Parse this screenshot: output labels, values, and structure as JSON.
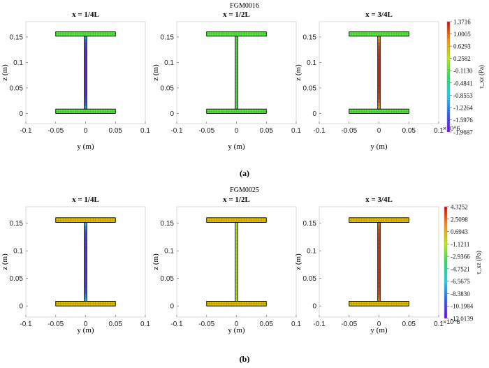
{
  "chart_data": [
    {
      "type": "heatmap",
      "panel_label": "(a)",
      "supertitle": "FGM0016",
      "colorbar_ticks": [
        "1.3716",
        "1.0005",
        "0.6293",
        "0.2582",
        "-0.1130",
        "-0.4841",
        "-0.8553",
        "-1.2264",
        "-1.5976",
        "-1.9687"
      ],
      "colorbar_range": [
        -1.9687,
        1.3716
      ],
      "colorbar_label": "τ_xz (Pa)",
      "colorbar_multiplier": "×10^6",
      "xlabel": "y (m)",
      "ylabel": "z (m)",
      "xlim": [
        -0.1,
        0.1
      ],
      "ylim": [
        -0.02,
        0.18
      ],
      "xticks": [
        "-0.1",
        "-0.05",
        "0",
        "0.05",
        "0.1"
      ],
      "yticks": [
        "0",
        "0.05",
        "0.1",
        "0.15"
      ],
      "subplots": [
        {
          "title": "x = 1/4L",
          "flange_value": -0.1,
          "web_value": -1.78,
          "web_end_value": -0.95
        },
        {
          "title": "x = 1/2L",
          "flange_value": -0.1,
          "web_value": -0.14,
          "web_end_value": -0.12
        },
        {
          "title": "x = 3/4L",
          "flange_value": -0.1,
          "web_value": 1.22,
          "web_end_value": 0.55
        }
      ]
    },
    {
      "type": "heatmap",
      "panel_label": "(b)",
      "supertitle": "FGM0025",
      "colorbar_ticks": [
        "4.3252",
        "2.5098",
        "0.6943",
        "-1.1211",
        "-2.9366",
        "-4.7521",
        "-6.5675",
        "-8.3830",
        "-10.1984",
        "-12.0139"
      ],
      "colorbar_range": [
        -12.0139,
        4.3252
      ],
      "colorbar_label": "τ_xz (Pa)",
      "colorbar_multiplier": "×10^6",
      "xlabel": "y (m)",
      "ylabel": "z (m)",
      "xlim": [
        -0.1,
        0.1
      ],
      "ylim": [
        -0.02,
        0.18
      ],
      "xticks": [
        "-0.1",
        "-0.05",
        "0",
        "0.05",
        "0.1"
      ],
      "yticks": [
        "0",
        "0.05",
        "0.1",
        "0.15"
      ],
      "subplots": [
        {
          "title": "x = 1/4L",
          "flange_value": 0.3,
          "web_value": -10.6,
          "web_end_value": -6.0
        },
        {
          "title": "x = 1/2L",
          "flange_value": 0.3,
          "web_value": -1.4,
          "web_end_value": -1.0
        },
        {
          "title": "x = 3/4L",
          "flange_value": 0.3,
          "web_value": 3.4,
          "web_end_value": 1.8
        }
      ]
    }
  ],
  "colormap_stops": [
    "#7a00f0",
    "#2860f5",
    "#14d4f0",
    "#20e060",
    "#b8f000",
    "#ff9000",
    "#e00000"
  ]
}
